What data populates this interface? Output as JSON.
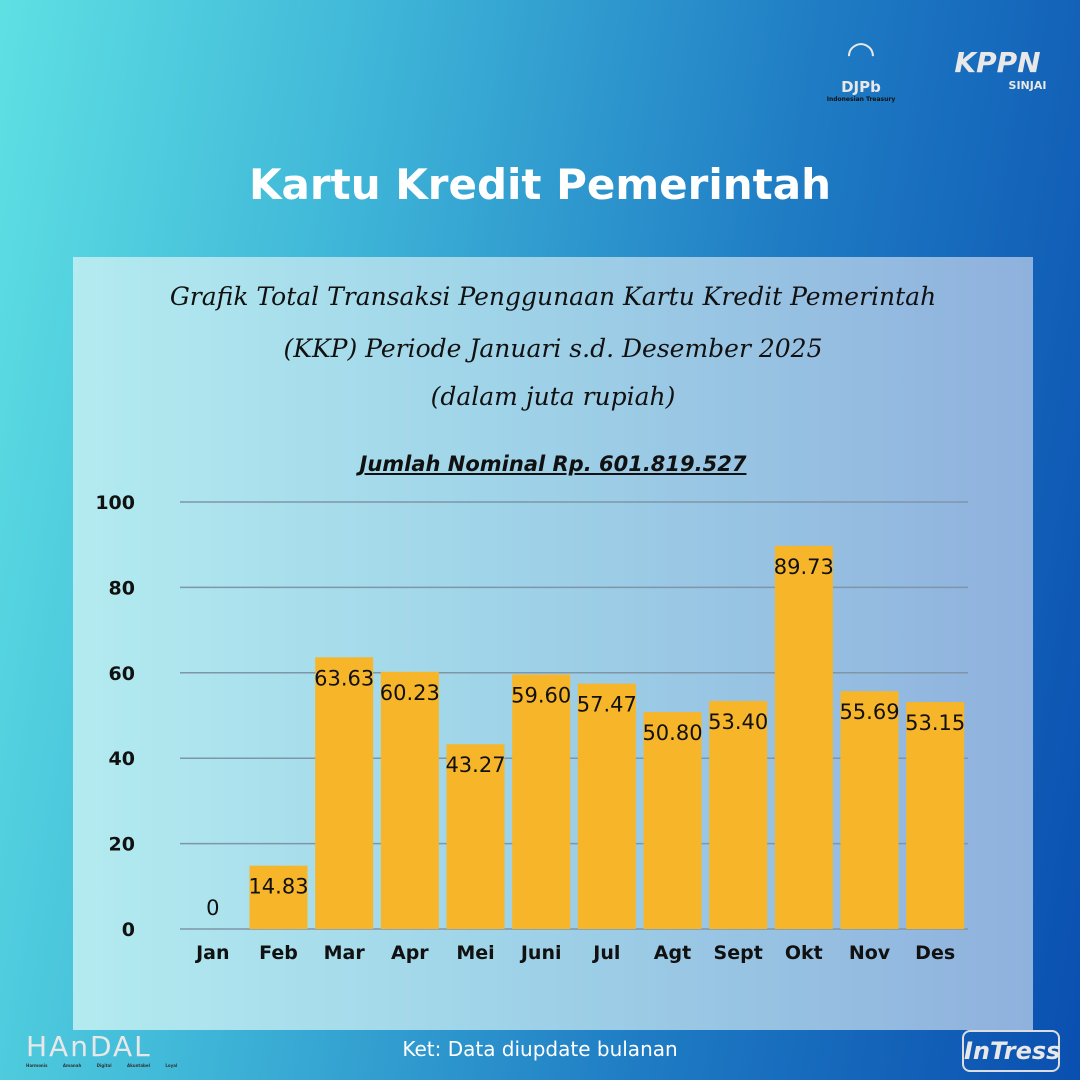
{
  "logos": {
    "djpb": "DJPb",
    "djpb_sub": "Indonesian Treasury",
    "kppn": "KPPN",
    "kppn_sub": "SINJAI",
    "handal": "HAnDAL",
    "handal_sub": "Harmonis Amanah Digital Akuntabel Loyal",
    "intress": "InTress"
  },
  "title": "Kartu Kredit Pemerintah",
  "footer": "Ket: Data diupdate bulanan",
  "chart_data": {
    "type": "bar",
    "title_lines": [
      "Grafik Total Transaksi Penggunaan Kartu Kredit Pemerintah",
      "(KKP) Periode Januari s.d. Desember 2025",
      "(dalam juta rupiah)"
    ],
    "subtitle": "Jumlah Nominal Rp. 601.819.527",
    "categories": [
      "Jan",
      "Feb",
      "Mar",
      "Apr",
      "Mei",
      "Juni",
      "Jul",
      "Agt",
      "Sept",
      "Okt",
      "Nov",
      "Des"
    ],
    "values": [
      0,
      14.83,
      63.63,
      60.23,
      43.27,
      59.6,
      57.47,
      50.8,
      53.4,
      89.73,
      55.69,
      53.15
    ],
    "labels": [
      "0",
      "14.83",
      "63.63",
      "60.23",
      "43.27",
      "59.60",
      "57.47",
      "50.80",
      "53.40",
      "89.73",
      "55.69",
      "53.15"
    ],
    "yticks": [
      0,
      20,
      40,
      60,
      80,
      100
    ],
    "ylim": [
      0,
      100
    ],
    "grid": true,
    "bar_color": "#f7b52a",
    "xlabel": "",
    "ylabel": ""
  }
}
